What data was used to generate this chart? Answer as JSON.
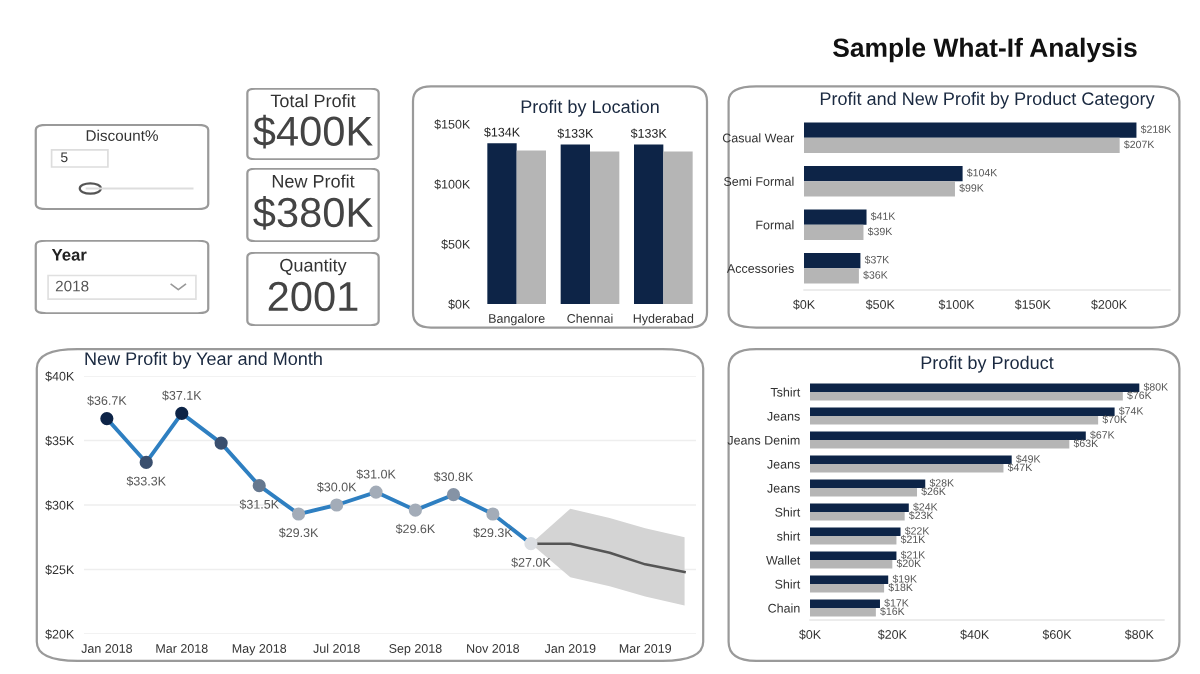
{
  "chart_data": [
    {
      "type": "other",
      "title": "Sample What-If Analysis"
    },
    {
      "type": "other",
      "title": "Discount%",
      "annotations": [
        "5"
      ]
    },
    {
      "type": "other",
      "title": "Year",
      "annotations": [
        "2018"
      ]
    },
    {
      "type": "other",
      "title": "Total Profit",
      "annotations": [
        "$400K"
      ]
    },
    {
      "type": "other",
      "title": "New Profit",
      "annotations": [
        "$380K"
      ]
    },
    {
      "type": "other",
      "title": "Quantity",
      "annotations": [
        "2001"
      ]
    },
    {
      "type": "bar",
      "title": "Profit by Location",
      "categories": [
        "Bangalore",
        "Chennai",
        "Hyderabad"
      ],
      "series": [
        {
          "color": "#0d2447",
          "values": [
            134,
            133,
            133
          ],
          "value_labels": [
            "$134K",
            "$133K",
            "$133K"
          ]
        },
        {
          "color": "#b5b5b5",
          "values": [
            128,
            127,
            127
          ]
        }
      ],
      "ylim": [
        0,
        150
      ],
      "yticks": [
        {
          "value": 0,
          "label": "$0K"
        },
        {
          "value": 50,
          "label": "$50K"
        },
        {
          "value": 100,
          "label": "$100K"
        },
        {
          "value": 150,
          "label": "$150K"
        }
      ]
    },
    {
      "type": "bar",
      "orientation": "horizontal",
      "title": "Profit and New Profit by Product Category",
      "categories": [
        "Casual Wear",
        "Semi Formal",
        "Formal",
        "Accessories"
      ],
      "series": [
        {
          "color": "#0d2447",
          "values": [
            218,
            104,
            41,
            37
          ],
          "value_labels": [
            "$218K",
            "$104K",
            "$41K",
            "$37K"
          ]
        },
        {
          "color": "#b5b5b5",
          "values": [
            207,
            99,
            39,
            36
          ],
          "value_labels": [
            "$207K",
            "$99K",
            "$39K",
            "$36K"
          ]
        }
      ],
      "xlim": [
        0,
        240
      ],
      "xticks": [
        {
          "value": 0,
          "label": "$0K"
        },
        {
          "value": 50,
          "label": "$50K"
        },
        {
          "value": 100,
          "label": "$100K"
        },
        {
          "value": 150,
          "label": "$150K"
        },
        {
          "value": 200,
          "label": "$200K"
        }
      ]
    },
    {
      "type": "line",
      "title": "New Profit by Year and Month",
      "grid": "y",
      "marker": "circle",
      "series": [
        {
          "x": [
            "2018-01",
            "2018-02",
            "2018-03",
            "2018-04",
            "2018-05",
            "2018-06",
            "2018-07",
            "2018-08",
            "2018-09",
            "2018-10",
            "2018-11",
            "2018-12"
          ],
          "color": "#2e7fc1",
          "colors": [
            "#0d2447",
            "#3a4f6e",
            "#0d2447",
            "#3a4f6e",
            "#66788f",
            "#a3acb8",
            "#a3acb8",
            "#a3acb8",
            "#a3acb8",
            "#8593a5",
            "#a3acb8",
            "#dcdfe3"
          ],
          "values": [
            36.7,
            33.3,
            37.1,
            34.8,
            31.5,
            29.3,
            30.0,
            31.0,
            29.6,
            30.8,
            29.3,
            27.0
          ],
          "value_labels": [
            "$36.7K",
            "$33.3K",
            "$37.1K",
            null,
            "$31.5K",
            "$29.3K",
            "$30.0K",
            "$31.0K",
            "$29.6K",
            "$30.8K",
            "$29.3K",
            "$27.0K"
          ]
        },
        {
          "type": "line",
          "marker": "none",
          "x": [
            "2018-12",
            "2019-01",
            "2019-02",
            "2019-03",
            "2019-04"
          ],
          "color": "#555555",
          "values": [
            27.0,
            27.0,
            26.3,
            25.4,
            24.8
          ],
          "lower": [
            27.0,
            24.4,
            23.7,
            22.9,
            22.2
          ],
          "upper": [
            27.0,
            29.7,
            29.0,
            28.2,
            27.5
          ]
        }
      ],
      "xlim": [
        "2017-12-14",
        "2019-04-10"
      ],
      "xticks": [
        {
          "value": "2018-01",
          "label": "Jan 2018"
        },
        {
          "value": "2018-03",
          "label": "Mar 2018"
        },
        {
          "value": "2018-05",
          "label": "May 2018"
        },
        {
          "value": "2018-07",
          "label": "Jul 2018"
        },
        {
          "value": "2018-09",
          "label": "Sep 2018"
        },
        {
          "value": "2018-11",
          "label": "Nov 2018"
        },
        {
          "value": "2019-01",
          "label": "Jan 2019"
        },
        {
          "value": "2019-03",
          "label": "Mar 2019"
        }
      ],
      "ylim": [
        20,
        40
      ],
      "yticks": [
        {
          "value": 20,
          "label": "$20K"
        },
        {
          "value": 25,
          "label": "$25K"
        },
        {
          "value": 30,
          "label": "$30K"
        },
        {
          "value": 35,
          "label": "$35K"
        },
        {
          "value": 40,
          "label": "$40K"
        }
      ]
    },
    {
      "type": "bar",
      "orientation": "horizontal",
      "title": "Profit by Product",
      "categories": [
        "Tshirt",
        "Jeans",
        "Jeans Denim",
        "Jeans",
        "Jeans",
        "Shirt",
        "shirt",
        "Wallet",
        "Shirt",
        "Chain"
      ],
      "series": [
        {
          "color": "#0d2447",
          "values": [
            80,
            74,
            67,
            49,
            28,
            24,
            22,
            21,
            19,
            17
          ],
          "value_labels": [
            "$80K",
            "$74K",
            "$67K",
            "$49K",
            "$28K",
            "$24K",
            "$22K",
            "$21K",
            "$19K",
            "$17K"
          ]
        },
        {
          "color": "#b5b5b5",
          "values": [
            76,
            70,
            63,
            47,
            26,
            23,
            21,
            20,
            18,
            16
          ],
          "value_labels": [
            "$76K",
            "$70K",
            "$63K",
            "$47K",
            "$26K",
            "$23K",
            "$21K",
            "$20K",
            "$18K",
            "$16K"
          ]
        }
      ],
      "xlim": [
        0,
        86
      ],
      "xticks": [
        {
          "value": 0,
          "label": "$0K"
        },
        {
          "value": 20,
          "label": "$20K"
        },
        {
          "value": 40,
          "label": "$40K"
        },
        {
          "value": 60,
          "label": "$60K"
        },
        {
          "value": 80,
          "label": "$80K"
        }
      ]
    }
  ]
}
